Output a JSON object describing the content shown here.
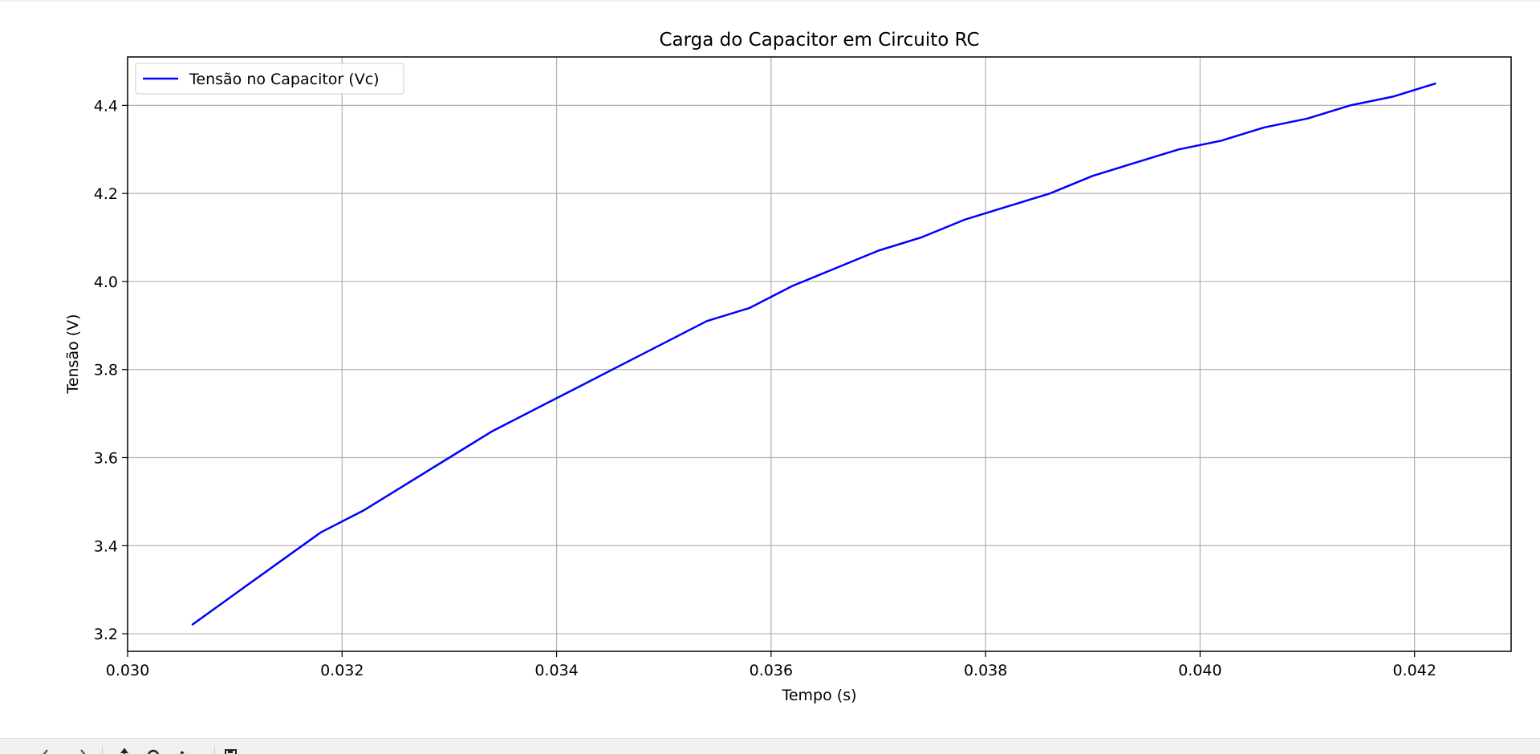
{
  "chart_data": {
    "type": "line",
    "title": "Carga do Capacitor em Circuito RC",
    "xlabel": "Tempo (s)",
    "ylabel": "Tensão (V)",
    "xlim": [
      0.03,
      0.0429
    ],
    "ylim": [
      3.16,
      4.51
    ],
    "xticks": [
      "0.030",
      "0.032",
      "0.034",
      "0.036",
      "0.038",
      "0.040",
      "0.042"
    ],
    "yticks": [
      "3.2",
      "3.4",
      "3.6",
      "3.8",
      "4.0",
      "4.2",
      "4.4"
    ],
    "grid": true,
    "legend_position": "upper left",
    "series": [
      {
        "name": "Tensão no Capacitor (Vc)",
        "color": "#0000ff",
        "x": [
          0.0306,
          0.031,
          0.0314,
          0.0318,
          0.0322,
          0.0326,
          0.033,
          0.0334,
          0.0338,
          0.0342,
          0.0346,
          0.035,
          0.0354,
          0.0358,
          0.0362,
          0.0366,
          0.037,
          0.0374,
          0.0378,
          0.0382,
          0.0386,
          0.039,
          0.0394,
          0.0398,
          0.0402,
          0.0406,
          0.041,
          0.0414,
          0.0418,
          0.0422
        ],
        "y": [
          3.22,
          3.29,
          3.36,
          3.43,
          3.48,
          3.54,
          3.6,
          3.66,
          3.71,
          3.76,
          3.81,
          3.86,
          3.91,
          3.94,
          3.99,
          4.03,
          4.07,
          4.1,
          4.14,
          4.17,
          4.2,
          4.24,
          4.27,
          4.3,
          4.32,
          4.35,
          4.37,
          4.4,
          4.42,
          4.45
        ]
      }
    ]
  },
  "toolbar": {
    "icons": [
      "home-icon",
      "back-icon",
      "forward-icon",
      "pan-icon",
      "zoom-icon",
      "configure-icon",
      "save-icon"
    ]
  }
}
